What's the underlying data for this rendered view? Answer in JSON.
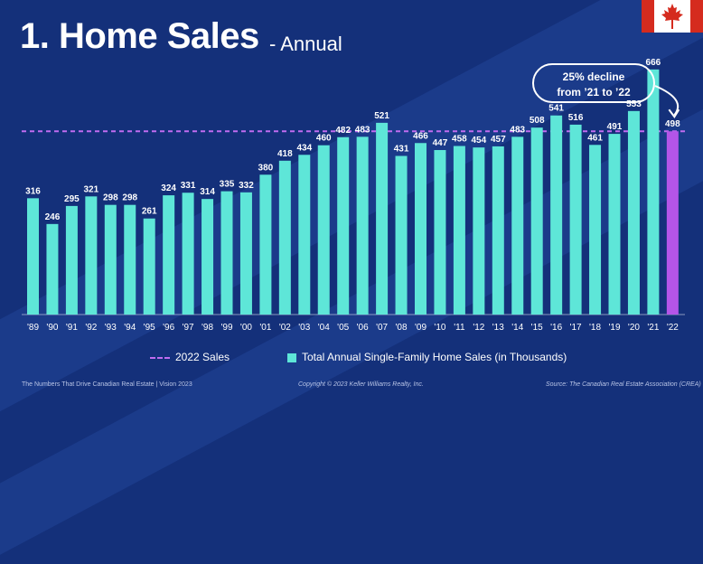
{
  "header": {
    "title": "1. Home Sales",
    "subtitle": "- Annual"
  },
  "callout": {
    "line1": "25% decline",
    "line2": "from ’21 to ’22"
  },
  "legend": {
    "line_label": "2022 Sales",
    "bar_label": "Total Annual Single-Family Home Sales (in Thousands)"
  },
  "footer": {
    "left": "The Numbers That Drive Canadian Real Estate  |  Vision 2023",
    "center": "Copyright © 2023 Keller Williams Realty, Inc.",
    "right": "Source: The Canadian Real Estate Association (CREA)"
  },
  "colors": {
    "background": "#14307a",
    "bar": "#5ee6d8",
    "highlight_bar": "#b455e8",
    "reference_line": "#c06cf0"
  },
  "chart_data": {
    "type": "bar",
    "categories": [
      "'89",
      "'90",
      "'91",
      "'92",
      "'93",
      "'94",
      "'95",
      "'96",
      "'97",
      "'98",
      "'99",
      "'00",
      "'01",
      "'02",
      "'03",
      "'04",
      "'05",
      "'06",
      "'07",
      "'08",
      "'09",
      "'10",
      "'11",
      "'12",
      "'13",
      "'14",
      "'15",
      "'16",
      "'17",
      "'18",
      "'19",
      "'20",
      "'21",
      "'22"
    ],
    "values": [
      316,
      246,
      295,
      321,
      298,
      298,
      261,
      324,
      331,
      314,
      335,
      332,
      380,
      418,
      434,
      460,
      482,
      483,
      521,
      431,
      466,
      447,
      458,
      454,
      457,
      483,
      508,
      541,
      516,
      461,
      491,
      553,
      666,
      498
    ],
    "series_name": "Total Annual Single-Family Home Sales (in Thousands)",
    "highlight_category": "'22",
    "reference_line": {
      "name": "2022 Sales",
      "value": 498
    },
    "ylim": [
      0,
      700
    ],
    "grid": false,
    "legend_position": "bottom",
    "title": "1. Home Sales",
    "subtitle": "- Annual"
  }
}
